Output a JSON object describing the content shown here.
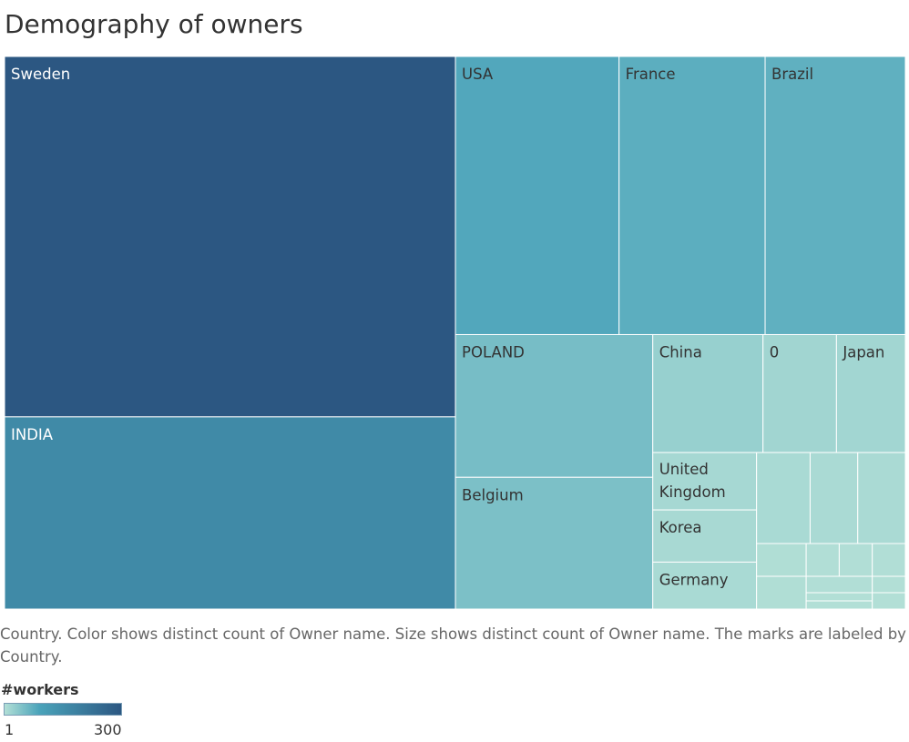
{
  "chart_data": {
    "type": "treemap",
    "title": "Demography of owners",
    "measure": "distinct count of Owner name",
    "items": [
      {
        "label": "Sweden",
        "value": 300
      },
      {
        "label": "INDIA",
        "value": 160
      },
      {
        "label": "USA",
        "value": 84
      },
      {
        "label": "France",
        "value": 75
      },
      {
        "label": "Brazil",
        "value": 72
      },
      {
        "label": "POLAND",
        "value": 52
      },
      {
        "label": "Belgium",
        "value": 48
      },
      {
        "label": "China",
        "value": 24
      },
      {
        "label": "0",
        "value": 16
      },
      {
        "label": "Japan",
        "value": 15
      },
      {
        "label": "United Kingdom",
        "value": 11
      },
      {
        "label": "Korea",
        "value": 10
      },
      {
        "label": "Germany",
        "value": 9
      },
      {
        "label": "",
        "value": 9
      },
      {
        "label": "",
        "value": 8
      },
      {
        "label": "",
        "value": 8
      },
      {
        "label": "",
        "value": 3
      },
      {
        "label": "",
        "value": 3
      },
      {
        "label": "",
        "value": 2
      },
      {
        "label": "",
        "value": 2
      },
      {
        "label": "",
        "value": 2
      },
      {
        "label": "",
        "value": 2
      },
      {
        "label": "",
        "value": 1
      },
      {
        "label": "",
        "value": 1
      },
      {
        "label": "",
        "value": 1
      },
      {
        "label": "",
        "value": 1
      }
    ],
    "color_scale": {
      "min": 1,
      "max": 300,
      "low_color": "#b2dfd6",
      "mid_color": "#4aa3ba",
      "high_color": "#2c5782"
    }
  },
  "caption": "Country.  Color shows distinct count of Owner name.  Size shows distinct count of Owner name.  The marks are labeled by Country.",
  "legend": {
    "title": "#workers",
    "min_label": "1",
    "max_label": "300"
  }
}
